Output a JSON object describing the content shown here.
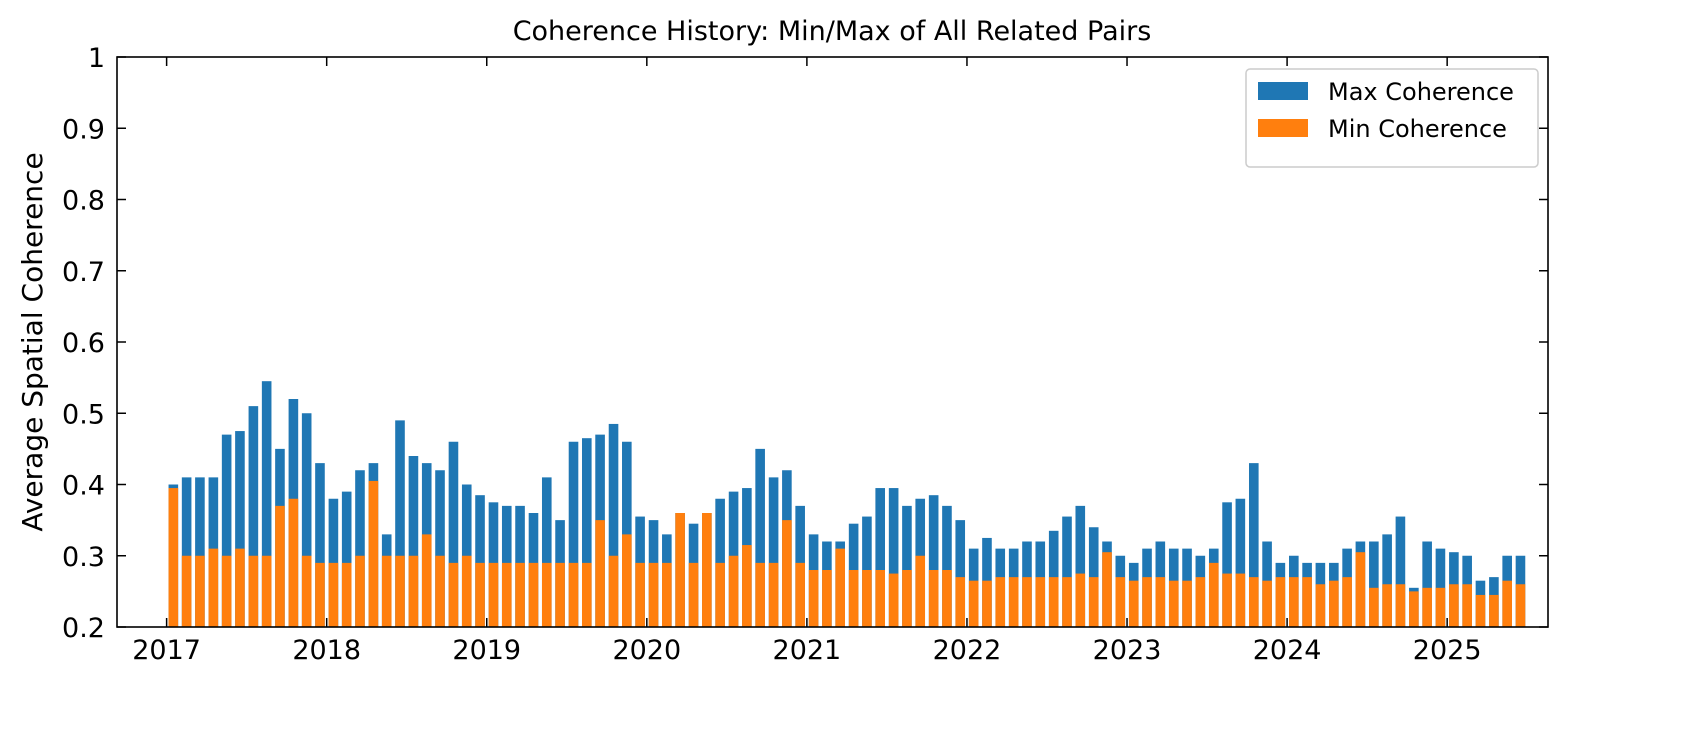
{
  "chart_data": {
    "type": "bar",
    "title": "Coherence History: Min/Max of All Related Pairs",
    "ylabel": "Average Spatial Coherence",
    "legend": "upper right",
    "xlim": [
      2016.69,
      2025.63
    ],
    "xticks": [
      2017,
      2018,
      2019,
      2020,
      2021,
      2022,
      2023,
      2024,
      2025
    ],
    "ylim": [
      0.2,
      1.0
    ],
    "yticks": [
      0.2,
      0.3,
      0.4,
      0.5,
      0.6,
      0.7,
      0.8,
      0.9,
      1.0
    ],
    "x": [
      2017.042,
      2017.125,
      2017.208,
      2017.292,
      2017.375,
      2017.458,
      2017.542,
      2017.625,
      2017.708,
      2017.792,
      2017.875,
      2017.958,
      2018.042,
      2018.125,
      2018.208,
      2018.292,
      2018.375,
      2018.458,
      2018.542,
      2018.625,
      2018.708,
      2018.792,
      2018.875,
      2018.958,
      2019.042,
      2019.125,
      2019.208,
      2019.292,
      2019.375,
      2019.458,
      2019.542,
      2019.625,
      2019.708,
      2019.792,
      2019.875,
      2019.958,
      2020.042,
      2020.125,
      2020.208,
      2020.292,
      2020.375,
      2020.458,
      2020.542,
      2020.625,
      2020.708,
      2020.792,
      2020.875,
      2020.958,
      2021.042,
      2021.125,
      2021.208,
      2021.292,
      2021.375,
      2021.458,
      2021.542,
      2021.625,
      2021.708,
      2021.792,
      2021.875,
      2021.958,
      2022.042,
      2022.125,
      2022.208,
      2022.292,
      2022.375,
      2022.458,
      2022.542,
      2022.625,
      2022.708,
      2022.792,
      2022.875,
      2022.958,
      2023.042,
      2023.125,
      2023.208,
      2023.292,
      2023.375,
      2023.458,
      2023.542,
      2023.625,
      2023.708,
      2023.792,
      2023.875,
      2023.958,
      2024.042,
      2024.125,
      2024.208,
      2024.292,
      2024.375,
      2024.458,
      2024.542,
      2024.625,
      2024.708,
      2024.792,
      2024.875,
      2024.958,
      2025.042,
      2025.125,
      2025.208,
      2025.292,
      2025.375,
      2025.458
    ],
    "series": [
      {
        "name": "Max Coherence",
        "color": "#1f77b4",
        "values": [
          0.4,
          0.41,
          0.41,
          0.41,
          0.47,
          0.475,
          0.51,
          0.545,
          0.45,
          0.52,
          0.5,
          0.43,
          0.38,
          0.39,
          0.42,
          0.43,
          0.33,
          0.49,
          0.44,
          0.43,
          0.42,
          0.46,
          0.4,
          0.385,
          0.375,
          0.37,
          0.37,
          0.36,
          0.41,
          0.35,
          0.46,
          0.465,
          0.47,
          0.485,
          0.46,
          0.355,
          0.35,
          0.33,
          0.36,
          0.345,
          0.36,
          0.38,
          0.39,
          0.395,
          0.45,
          0.41,
          0.42,
          0.37,
          0.33,
          0.32,
          0.32,
          0.345,
          0.355,
          0.395,
          0.395,
          0.37,
          0.38,
          0.385,
          0.37,
          0.35,
          0.31,
          0.325,
          0.31,
          0.31,
          0.32,
          0.32,
          0.335,
          0.355,
          0.37,
          0.34,
          0.32,
          0.3,
          0.29,
          0.31,
          0.32,
          0.31,
          0.31,
          0.3,
          0.31,
          0.375,
          0.38,
          0.43,
          0.32,
          0.29,
          0.3,
          0.29,
          0.29,
          0.29,
          0.31,
          0.32,
          0.32,
          0.33,
          0.355,
          0.255,
          0.32,
          0.31,
          0.305,
          0.3,
          0.265,
          0.27,
          0.3,
          0.3
        ]
      },
      {
        "name": "Min Coherence",
        "color": "#ff7f0e",
        "values": [
          0.395,
          0.3,
          0.3,
          0.31,
          0.3,
          0.31,
          0.3,
          0.3,
          0.37,
          0.38,
          0.3,
          0.29,
          0.29,
          0.29,
          0.3,
          0.405,
          0.3,
          0.3,
          0.3,
          0.33,
          0.3,
          0.29,
          0.3,
          0.29,
          0.29,
          0.29,
          0.29,
          0.29,
          0.29,
          0.29,
          0.29,
          0.29,
          0.35,
          0.3,
          0.33,
          0.29,
          0.29,
          0.29,
          0.36,
          0.29,
          0.36,
          0.29,
          0.3,
          0.315,
          0.29,
          0.29,
          0.35,
          0.29,
          0.28,
          0.28,
          0.31,
          0.28,
          0.28,
          0.28,
          0.275,
          0.28,
          0.3,
          0.28,
          0.28,
          0.27,
          0.265,
          0.265,
          0.27,
          0.27,
          0.27,
          0.27,
          0.27,
          0.27,
          0.275,
          0.27,
          0.305,
          0.27,
          0.265,
          0.27,
          0.27,
          0.265,
          0.265,
          0.27,
          0.29,
          0.275,
          0.275,
          0.27,
          0.265,
          0.27,
          0.27,
          0.27,
          0.26,
          0.265,
          0.27,
          0.305,
          0.255,
          0.26,
          0.26,
          0.25,
          0.255,
          0.255,
          0.26,
          0.26,
          0.245,
          0.245,
          0.265,
          0.26
        ]
      }
    ]
  }
}
